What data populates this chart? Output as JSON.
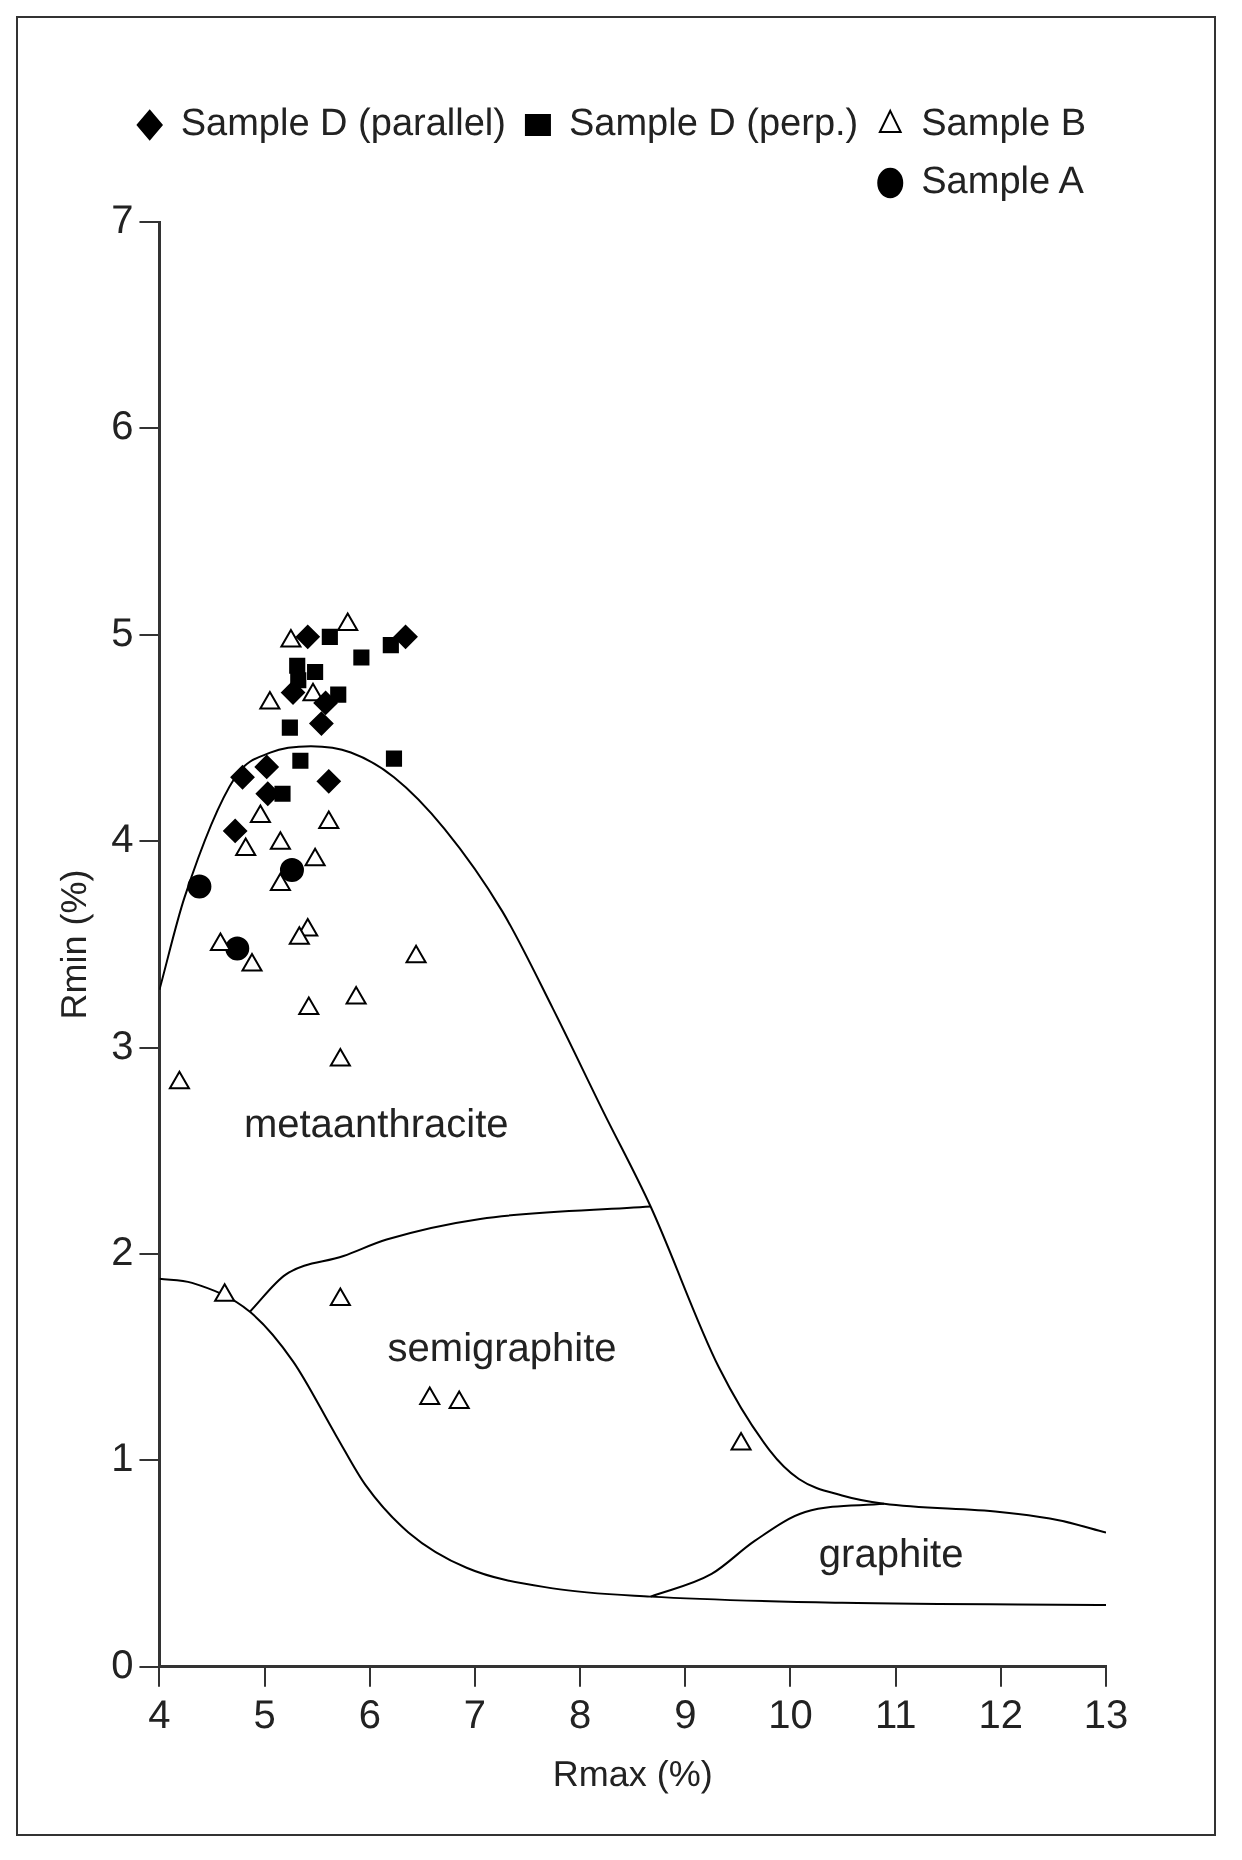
{
  "chart_data": {
    "type": "scatter",
    "xlabel": "Rmax (%)",
    "ylabel": "Rmin (%)",
    "xlim": [
      4,
      13
    ],
    "ylim": [
      0,
      7
    ],
    "xticks": [
      4,
      5,
      6,
      7,
      8,
      9,
      10,
      11,
      12,
      13
    ],
    "yticks": [
      0,
      1,
      2,
      3,
      4,
      5,
      6,
      7
    ],
    "grid": false,
    "legend": "top right",
    "series": [
      {
        "name": "Sample D (parallel)",
        "color": "#000000",
        "marker": "diamond",
        "x": [
          5.41,
          6.34,
          5.27,
          5.54,
          5.58,
          4.79,
          5.02,
          5.03,
          5.61,
          4.72
        ],
        "values": [
          4.99,
          4.99,
          4.72,
          4.57,
          4.67,
          4.31,
          4.36,
          4.23,
          4.29,
          4.05
        ]
      },
      {
        "name": "Sample D (perp.)",
        "color": "#000000",
        "marker": "square",
        "x": [
          5.62,
          5.92,
          6.2,
          5.31,
          5.48,
          5.32,
          5.7,
          5.24,
          5.34,
          6.23,
          5.17
        ],
        "values": [
          4.99,
          4.89,
          4.95,
          4.85,
          4.82,
          4.78,
          4.71,
          4.55,
          4.39,
          4.4,
          4.23
        ]
      },
      {
        "name": "Sample B",
        "color": "#000000",
        "marker": "triangle",
        "x": [
          5.25,
          5.79,
          5.05,
          5.46,
          4.96,
          5.61,
          4.82,
          5.15,
          5.48,
          5.15,
          5.41,
          5.33,
          4.58,
          4.88,
          6.44,
          5.42,
          5.87,
          5.72,
          4.19,
          4.62,
          5.72,
          6.57,
          6.85,
          9.53
        ],
        "values": [
          4.97,
          5.05,
          4.67,
          4.71,
          4.12,
          4.09,
          3.96,
          3.99,
          3.91,
          3.79,
          3.57,
          3.53,
          3.5,
          3.4,
          3.44,
          3.19,
          3.24,
          2.94,
          2.83,
          1.8,
          1.78,
          1.3,
          1.28,
          1.08
        ]
      },
      {
        "name": "Sample A",
        "color": "#000000",
        "marker": "circle",
        "x": [
          4.38,
          5.26,
          4.74
        ],
        "values": [
          3.78,
          3.86,
          3.48
        ]
      },
      {
        "type": "line",
        "color": "#000000",
        "marker": "none",
        "x": [
          4,
          4.24,
          4.72,
          5.06,
          5.44,
          5.82,
          6.23,
          6.71,
          7.26,
          7.74,
          8.22,
          8.67,
          9.32,
          9.8,
          10.08,
          10.49,
          10.89,
          11.99,
          12.55,
          13
        ],
        "values": [
          3.28,
          3.73,
          4.31,
          4.43,
          4.46,
          4.43,
          4.31,
          4.06,
          3.66,
          3.19,
          2.69,
          2.23,
          1.45,
          1.05,
          0.91,
          0.83,
          0.79,
          0.75,
          0.71,
          0.65
        ]
      },
      {
        "type": "line",
        "color": "#000000",
        "marker": "none",
        "x": [
          4,
          4.31,
          4.86,
          5.27,
          5.68,
          5.96,
          6.37,
          6.92,
          7.74,
          8.67,
          10.49,
          13
        ],
        "values": [
          1.88,
          1.86,
          1.72,
          1.48,
          1.12,
          0.88,
          0.65,
          0.48,
          0.38,
          0.34,
          0.31,
          0.3
        ]
      },
      {
        "type": "line",
        "color": "#000000",
        "marker": "none",
        "x": [
          4.86,
          5.2,
          5.75,
          6.16,
          7.05,
          8.67
        ],
        "values": [
          1.72,
          1.9,
          1.99,
          2.07,
          2.17,
          2.23
        ]
      },
      {
        "type": "line",
        "color": "#000000",
        "marker": "none",
        "x": [
          8.67,
          9.25,
          9.66,
          10.14,
          10.89
        ],
        "values": [
          0.34,
          0.45,
          0.61,
          0.75,
          0.79
        ]
      }
    ],
    "annotations": [
      "metaanthracite",
      "semigraphite",
      "graphite"
    ]
  }
}
